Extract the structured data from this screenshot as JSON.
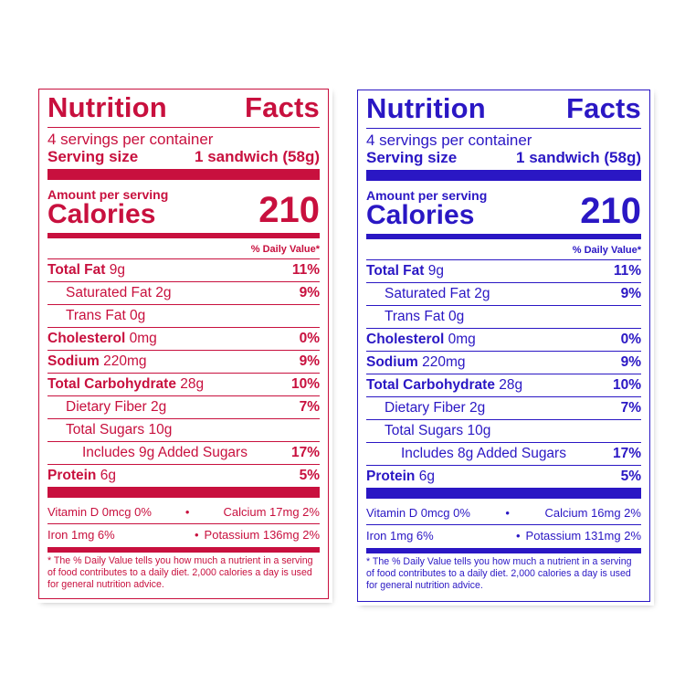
{
  "labels": {
    "red": {
      "color": "#c8103e",
      "title_left": "Nutrition",
      "title_right": "Facts",
      "servings": "4 servings per container",
      "serving_size_label": "Serving size",
      "serving_size_value": "1 sandwich (58g)",
      "amount_per_serving": "Amount per serving",
      "calories_label": "Calories",
      "calories_value": "210",
      "daily_value_header": "% Daily Value*",
      "rows": [
        {
          "bold": "Total Fat",
          "amount": " 9g",
          "dv": "11%"
        },
        {
          "bold": "",
          "amount": "Saturated Fat 2g",
          "dv": "9%"
        },
        {
          "bold": "",
          "amount": "Trans Fat 0g",
          "dv": ""
        },
        {
          "bold": "Cholesterol",
          "amount": " 0mg",
          "dv": "0%"
        },
        {
          "bold": "Sodium",
          "amount": " 220mg",
          "dv": "9%"
        },
        {
          "bold": "Total Carbohydrate",
          "amount": " 28g",
          "dv": "10%"
        },
        {
          "bold": "",
          "amount": "Dietary Fiber 2g",
          "dv": "7%"
        },
        {
          "bold": "",
          "amount": "Total Sugars 10g",
          "dv": ""
        },
        {
          "bold": "",
          "amount": "Includes 9g Added Sugars",
          "dv": "17%"
        },
        {
          "bold": "Protein",
          "amount": " 6g",
          "dv": "5%"
        }
      ],
      "vitamin_d": "Vitamin D 0mcg 0%",
      "calcium": "Calcium 17mg 2%",
      "iron": "Iron 1mg 6%",
      "potassium": "Potassium 136mg 2%",
      "bullet": "•",
      "footnote": "* The % Daily Value tells you how much a nutrient in a serving of food contributes to a daily diet. 2,000 calories a day is used for general nutrition advice."
    },
    "blue": {
      "color": "#2a17c4",
      "title_left": "Nutrition",
      "title_right": "Facts",
      "servings": "4 servings per container",
      "serving_size_label": "Serving size",
      "serving_size_value": "1 sandwich (58g)",
      "amount_per_serving": "Amount per serving",
      "calories_label": "Calories",
      "calories_value": "210",
      "daily_value_header": "% Daily Value*",
      "rows": [
        {
          "bold": "Total Fat",
          "amount": " 9g",
          "dv": "11%"
        },
        {
          "bold": "",
          "amount": "Saturated Fat 2g",
          "dv": "9%"
        },
        {
          "bold": "",
          "amount": "Trans Fat 0g",
          "dv": ""
        },
        {
          "bold": "Cholesterol",
          "amount": " 0mg",
          "dv": "0%"
        },
        {
          "bold": "Sodium",
          "amount": " 220mg",
          "dv": "9%"
        },
        {
          "bold": "Total Carbohydrate",
          "amount": " 28g",
          "dv": "10%"
        },
        {
          "bold": "",
          "amount": "Dietary Fiber 2g",
          "dv": "7%"
        },
        {
          "bold": "",
          "amount": "Total Sugars 10g",
          "dv": ""
        },
        {
          "bold": "",
          "amount": "Includes 8g Added Sugars",
          "dv": "17%"
        },
        {
          "bold": "Protein",
          "amount": " 6g",
          "dv": "5%"
        }
      ],
      "vitamin_d": "Vitamin D 0mcg 0%",
      "calcium": "Calcium 16mg 2%",
      "iron": "Iron 1mg 6%",
      "potassium": "Potassium 131mg 2%",
      "bullet": "•",
      "footnote": "* The % Daily Value tells you how much a nutrient in a serving of food contributes to a daily diet. 2,000 calories a day is used for general nutrition advice."
    }
  }
}
